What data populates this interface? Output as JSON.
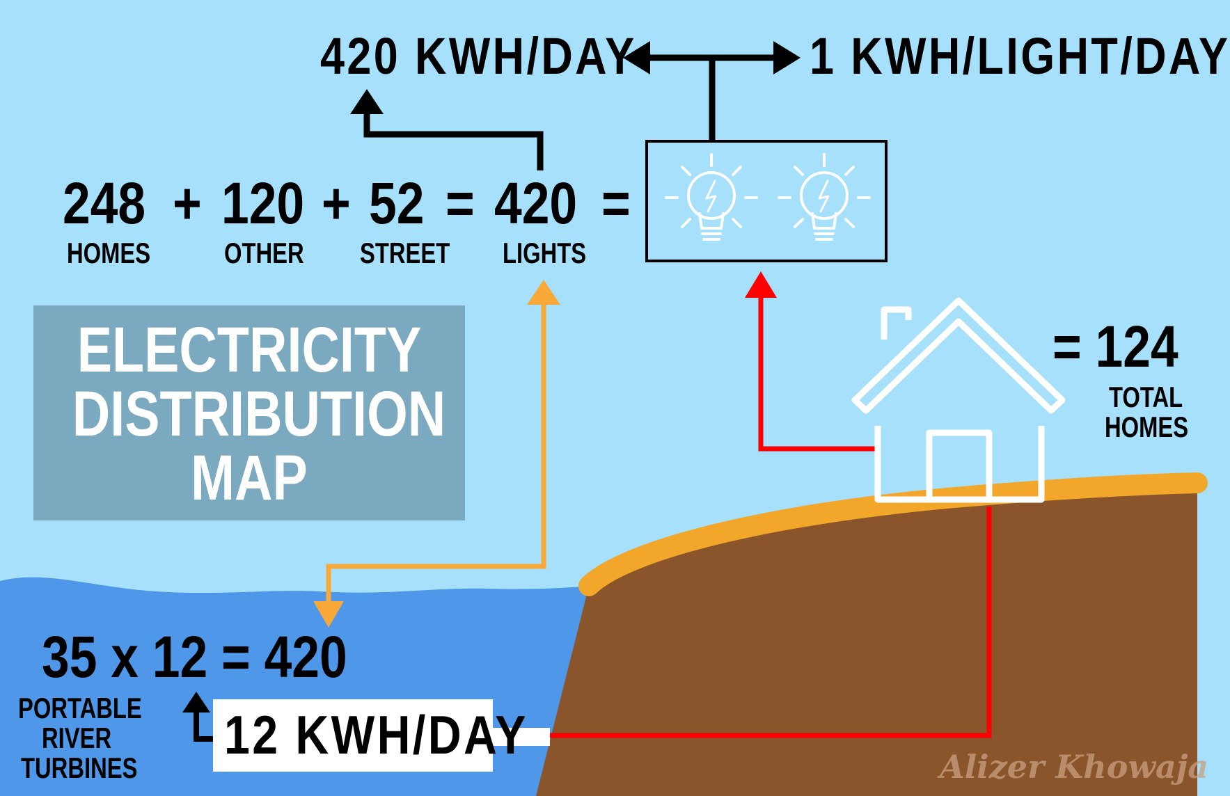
{
  "title": [
    "ELECTRICITY",
    "DISTRIBUTION",
    "MAP"
  ],
  "top": {
    "daily_total": "420 KWH/DAY",
    "per_light": "1 KWH/LIGHT/DAY"
  },
  "equation": {
    "homes_value": "248",
    "homes_label": "HOMES",
    "plus_1": "+",
    "other_value": "120",
    "other_label": "OTHER",
    "plus_2": "+",
    "street_value": "52",
    "street_label": "STREET",
    "equals_1": "=",
    "lights_value": "420",
    "lights_label": "LIGHTS",
    "equals_2": "="
  },
  "homes_total": {
    "value": "= 124",
    "label_line1": "TOTAL",
    "label_line2": "HOMES"
  },
  "turbines": {
    "equation": "35 x 12 = 420",
    "label_line1": "PORTABLE",
    "label_line2": "RIVER",
    "label_line3": "TURBINES",
    "output": "12 KWH/DAY"
  },
  "signature": "Alizer Khowaja",
  "icons": [
    "light-bulb-icon",
    "light-bulb-icon",
    "house-icon"
  ],
  "colors": {
    "sky": "#a6e0fb",
    "water": "#4f97e8",
    "ground": "#8b552b",
    "ground_edge": "#f2a62a",
    "title_box": "#7aa9c0",
    "wire_red": "#ff0000",
    "wire_orange": "#f8a93a",
    "arrow_black": "#000000"
  }
}
